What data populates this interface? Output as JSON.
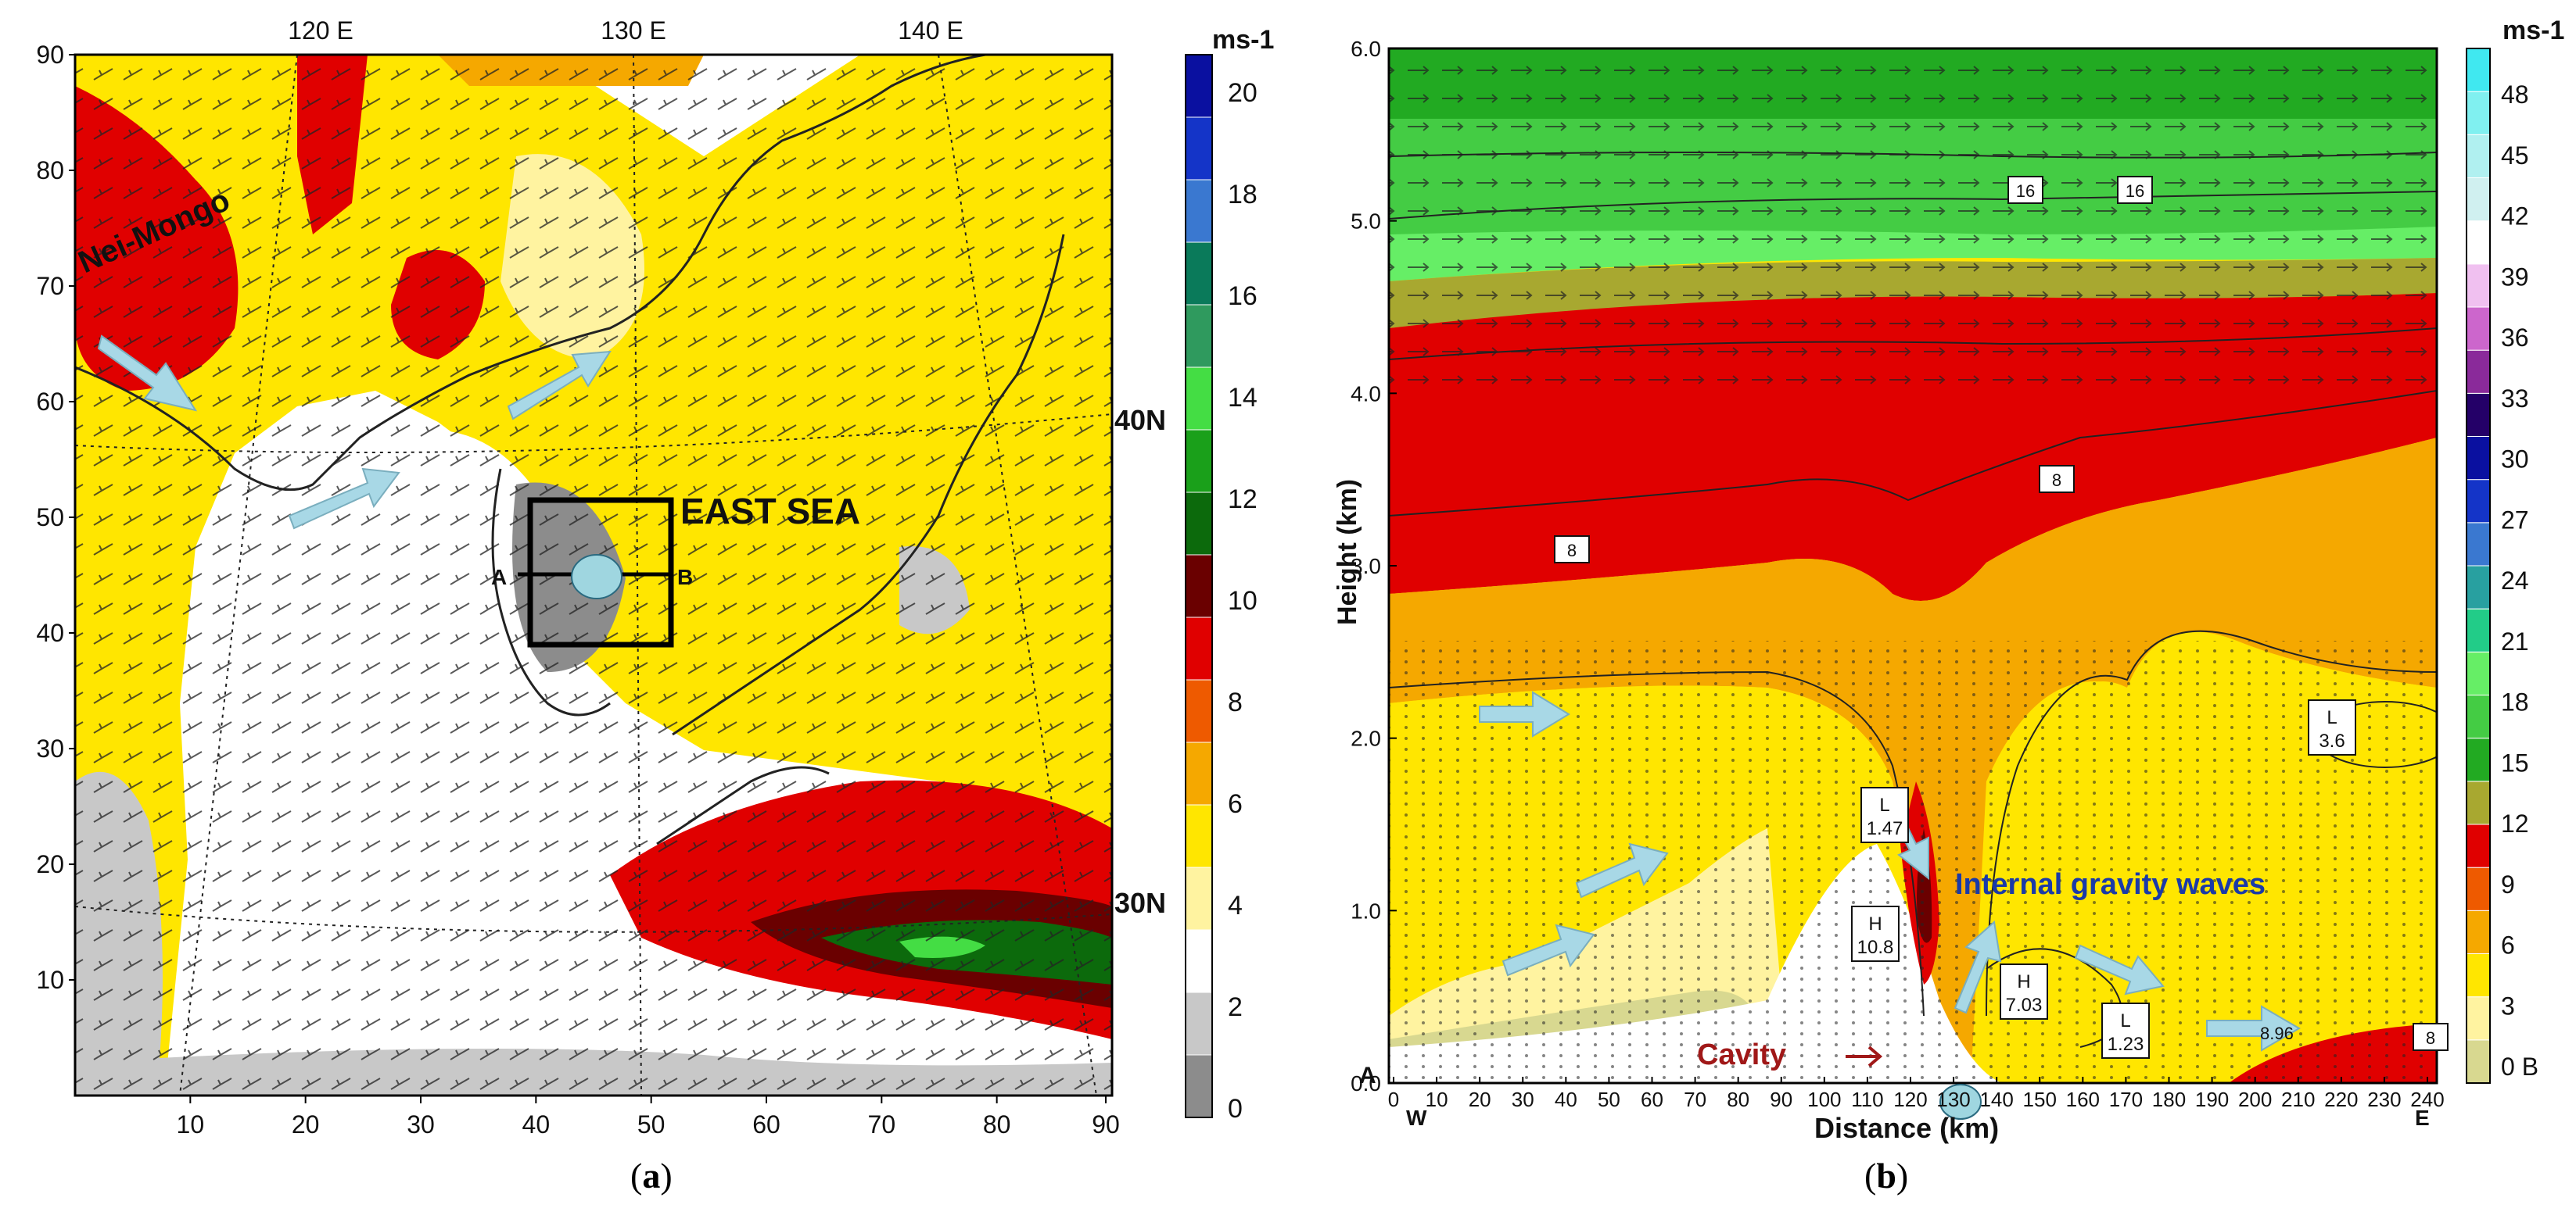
{
  "panel_a": {
    "caption_open": "(",
    "caption_letter": "a",
    "caption_close": ")",
    "top_lon_labels": [
      "120 E",
      "130 E",
      "140 E"
    ],
    "lat_labels": [
      "40N",
      "30N"
    ],
    "x_ticks": [
      "10",
      "20",
      "30",
      "40",
      "50",
      "60",
      "70",
      "80",
      "90"
    ],
    "y_ticks": [
      "10",
      "20",
      "30",
      "40",
      "50",
      "60",
      "70",
      "80",
      "90"
    ],
    "region_label": "Nei-Mongo",
    "sea_label": "EAST SEA",
    "section_start": "A",
    "section_end": "B",
    "colorbar": {
      "unit": "ms-1",
      "ticks": [
        "0",
        "2",
        "4",
        "6",
        "8",
        "10",
        "12",
        "14",
        "16",
        "18",
        "20"
      ],
      "colors": [
        "#8c8c8c",
        "#c8c8c8",
        "#ffffff",
        "#fff3a0",
        "#ffe600",
        "#f5a800",
        "#ee5a00",
        "#e00000",
        "#6a0000",
        "#0c6a0c",
        "#1aa01a",
        "#44dd44",
        "#2f9a5e",
        "#0a7a5a",
        "#3a78d0",
        "#1434c8",
        "#0a10a0"
      ]
    }
  },
  "panel_b": {
    "caption_open": "(",
    "caption_letter": "b",
    "caption_close": ")",
    "ylabel": "Height  (km)",
    "xlabel": "Distance (km)",
    "y_ticks": [
      "0.0",
      "1.0",
      "2.0",
      "3.0",
      "4.0",
      "5.0",
      "6.0"
    ],
    "x_ticks": [
      "0",
      "10",
      "20",
      "30",
      "40",
      "50",
      "60",
      "70",
      "80",
      "90",
      "100",
      "110",
      "120",
      "130",
      "140",
      "150",
      "160",
      "170",
      "180",
      "190",
      "200",
      "210",
      "220",
      "230",
      "240"
    ],
    "west_label": "W",
    "east_label": "E",
    "origin_label": "A",
    "cavity_label": "Cavity",
    "waves_label": "Internal gravity waves",
    "contour_labels": [
      "16",
      "16",
      "8",
      "8",
      "8"
    ],
    "low_labels": [
      {
        "l": "L",
        "v": "3.6"
      },
      {
        "l": "L",
        "v": "1.47"
      },
      {
        "l": "L",
        "v": "1.23"
      }
    ],
    "high_labels": [
      {
        "l": "H",
        "v": "10.8"
      },
      {
        "l": "H",
        "v": "7.03"
      }
    ],
    "extra_label": "8.96",
    "colorbar": {
      "unit": "ms-1",
      "ticks": [
        "0 B",
        "3",
        "6",
        "9",
        "12",
        "15",
        "18",
        "21",
        "24",
        "27",
        "30",
        "33",
        "36",
        "39",
        "42",
        "45",
        "48"
      ],
      "colors": [
        "#d8d890",
        "#fff3a0",
        "#ffe600",
        "#f5a800",
        "#ee5a00",
        "#e00000",
        "#a8a830",
        "#22aa22",
        "#44cc44",
        "#66ee66",
        "#22cc88",
        "#28a0a0",
        "#3a78d0",
        "#1434c8",
        "#0a10a0",
        "#240068",
        "#8a2a9a",
        "#cc66cc",
        "#f0c0f0",
        "#ffffff",
        "#d0f0f0",
        "#b0f0f0",
        "#80f0f0",
        "#40e8f0"
      ]
    }
  }
}
